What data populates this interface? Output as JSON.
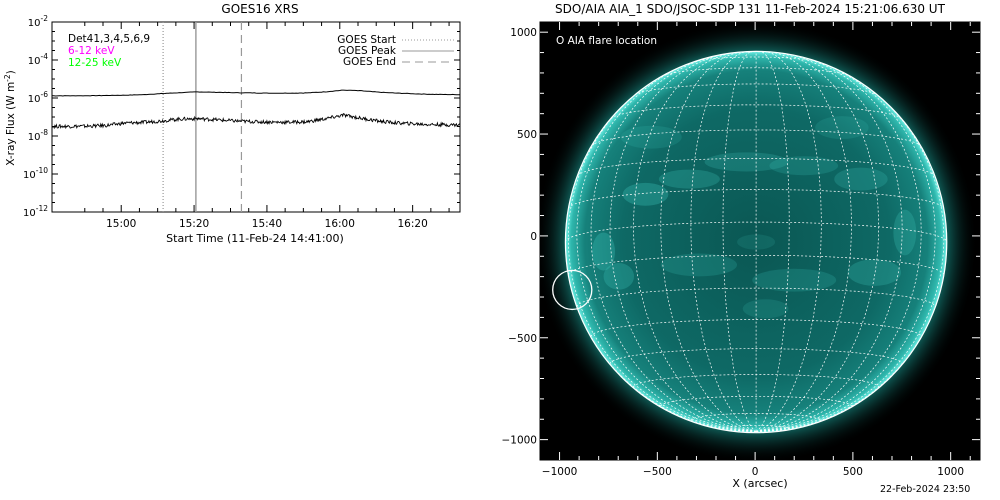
{
  "goes": {
    "title": "GOES16 XRS",
    "ylabel": "X-ray Flux (W m",
    "ylabel_sup": "-2",
    "ylabel_close": ")",
    "xlabel": "Start Time (11-Feb-24 14:41:00)",
    "ytick_base": "10",
    "yticks": [
      {
        "exp": -2,
        "label": "-2"
      },
      {
        "exp": -4,
        "label": "-4"
      },
      {
        "exp": -6,
        "label": "-6"
      },
      {
        "exp": -8,
        "label": "-8"
      },
      {
        "exp": -10,
        "label": "-10"
      },
      {
        "exp": -12,
        "label": "-12"
      }
    ],
    "xticks": [
      {
        "min": 19,
        "label": "15:00"
      },
      {
        "min": 39,
        "label": "15:20"
      },
      {
        "min": 59,
        "label": "15:40"
      },
      {
        "min": 79,
        "label": "16:00"
      },
      {
        "min": 99,
        "label": "16:20"
      }
    ],
    "energy_labels": [
      {
        "text": "Det41,3,4,5,6,9",
        "color": "#000000"
      },
      {
        "text": "6-12 keV",
        "color": "#ff00ff"
      },
      {
        "text": "12-25 keV",
        "color": "#00ff00"
      }
    ],
    "legend": [
      "GOES Start",
      "GOES Peak",
      "GOES End"
    ],
    "markers": {
      "start": 30.5,
      "peak": 39.5,
      "end": 52.0
    }
  },
  "chart_data": [
    {
      "type": "line",
      "title": "GOES16 XRS",
      "xlabel": "Start Time (11-Feb-24 14:41:00)",
      "ylabel": "X-ray Flux (W m^-2)",
      "x_units": "minutes after 14:41:00",
      "x_range": [
        0,
        112
      ],
      "ylim": [
        1e-12,
        0.01
      ],
      "yscale": "log",
      "series": [
        {
          "name": "",
          "x": [
            0,
            10,
            20,
            25,
            30,
            35,
            40,
            45,
            50,
            55,
            60,
            65,
            70,
            75,
            80,
            85,
            90,
            95,
            100,
            105,
            112
          ],
          "y": [
            1.3e-06,
            1.32e-06,
            1.4e-06,
            1.5e-06,
            1.7e-06,
            1.9e-06,
            2.1e-06,
            2e-06,
            1.9e-06,
            1.85e-06,
            1.8e-06,
            1.8e-06,
            1.85e-06,
            2.1e-06,
            2.6e-06,
            2.4e-06,
            2e-06,
            1.8e-06,
            1.65e-06,
            1.55e-06,
            1.5e-06
          ]
        },
        {
          "name": "",
          "x": [
            0,
            10,
            15,
            20,
            25,
            30,
            35,
            40,
            45,
            50,
            55,
            60,
            65,
            70,
            75,
            80,
            85,
            90,
            95,
            100,
            105,
            112
          ],
          "y": [
            3.2e-08,
            3.3e-08,
            3.6e-08,
            4.8e-08,
            5.2e-08,
            6.2e-08,
            7.8e-08,
            8.2e-08,
            7.2e-08,
            6.2e-08,
            5.7e-08,
            5.4e-08,
            5.3e-08,
            5.6e-08,
            8e-08,
            1.25e-07,
            8.5e-08,
            6e-08,
            4.8e-08,
            4.3e-08,
            4e-08,
            3.8e-08
          ]
        }
      ],
      "vlines": [
        {
          "name": "GOES Start",
          "x": 30.5,
          "style": "dotted"
        },
        {
          "name": "GOES Peak",
          "x": 39.5,
          "style": "solid"
        },
        {
          "name": "GOES End",
          "x": 52.0,
          "style": "dashed"
        }
      ]
    },
    {
      "type": "scatter",
      "title": "SDO/AIA AIA_1 SDO/JSOC-SDP 131 11-Feb-2024 15:21:06.630 UT",
      "xlabel": "X (arcsec)",
      "ylabel": "",
      "xlim": [
        -1100,
        1150
      ],
      "ylim": [
        -1100,
        1050
      ],
      "xticks": [
        -1000,
        -500,
        0,
        500,
        1000
      ],
      "yticks": [
        -1000,
        -500,
        0,
        500,
        1000
      ],
      "series": [
        {
          "name": "AIA flare location",
          "x": [
            -935
          ],
          "y": [
            -265
          ]
        }
      ]
    }
  ],
  "aia": {
    "title": "SDO/AIA AIA_1 SDO/JSOC-SDP 131 11-Feb-2024 15:21:06.630 UT",
    "xlabel": "X (arcsec)",
    "legend": "O AIA flare location",
    "xticks": [
      {
        "v": -1000,
        "label": "−1000"
      },
      {
        "v": -500,
        "label": "−500"
      },
      {
        "v": 0,
        "label": "0"
      },
      {
        "v": 500,
        "label": "500"
      },
      {
        "v": 1000,
        "label": "1000"
      }
    ],
    "yticks": [
      {
        "v": 1000,
        "label": "1000"
      },
      {
        "v": 500,
        "label": "500"
      },
      {
        "v": 0,
        "label": "0"
      },
      {
        "v": -500,
        "label": "−500"
      },
      {
        "v": -1000,
        "label": "−1000"
      }
    ],
    "flare": {
      "x": -935,
      "y": -265,
      "r": 100
    },
    "sun_center": {
      "x": 5,
      "y": -30
    },
    "sun_radius": 975,
    "disk_color": "#0f6c68",
    "rim_color": "#5fe7dc"
  },
  "timestamp": "22-Feb-2024 23:50"
}
